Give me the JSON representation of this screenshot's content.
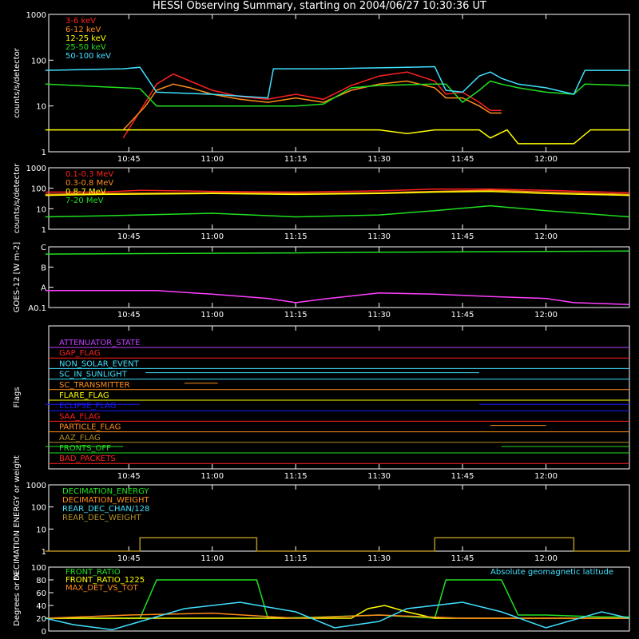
{
  "title": "HESSI Observing Summary, starting on 2004/06/27 10:30:36 UT",
  "time_ticks": [
    "10:45",
    "11:00",
    "11:15",
    "11:30",
    "11:45",
    "12:00"
  ],
  "colors": {
    "red": "#ff2020",
    "orange": "#ff8c1a",
    "yellow": "#ffff00",
    "green": "#20e020",
    "cyan": "#40e0ff",
    "magenta": "#ff40ff",
    "purple": "#c040ff",
    "blue": "#1a1aff",
    "olive": "#b09020",
    "white": "#ffffff"
  },
  "chart_data": [
    {
      "type": "line",
      "ylabel": "counts/s/detector",
      "yscale": "log",
      "ylim": [
        1,
        1000
      ],
      "yticks": [
        "1",
        "10",
        "100",
        "1000"
      ],
      "x_range": [
        "10:30:36",
        "12:15"
      ],
      "series": [
        {
          "name": "3-6 keV",
          "color": "#ff2020",
          "x": [
            "10:44",
            "10:48",
            "10:50",
            "10:53",
            "10:56",
            "11:00",
            "11:05",
            "11:10",
            "11:15",
            "11:20",
            "11:25",
            "11:30",
            "11:35",
            "11:40",
            "11:42",
            "11:45",
            "11:48",
            "11:50",
            "11:52"
          ],
          "y": [
            2,
            12,
            30,
            50,
            35,
            22,
            16,
            14,
            18,
            14,
            28,
            45,
            55,
            35,
            18,
            20,
            12,
            8,
            8
          ]
        },
        {
          "name": "6-12 keV",
          "color": "#ff8c1a",
          "x": [
            "10:44",
            "10:48",
            "10:50",
            "10:53",
            "10:56",
            "11:00",
            "11:05",
            "11:10",
            "11:15",
            "11:20",
            "11:25",
            "11:30",
            "11:35",
            "11:40",
            "11:42",
            "11:45",
            "11:48",
            "11:50",
            "11:52"
          ],
          "y": [
            3,
            10,
            22,
            30,
            25,
            18,
            14,
            12,
            15,
            12,
            22,
            30,
            35,
            25,
            15,
            15,
            10,
            7,
            7
          ]
        },
        {
          "name": "12-25 keV",
          "color": "#ffff00",
          "x": [
            "10:30",
            "10:44",
            "10:48",
            "10:58",
            "11:15",
            "11:30",
            "11:35",
            "11:40",
            "11:48",
            "11:50",
            "11:53",
            "11:55",
            "12:00",
            "12:05",
            "12:08",
            "12:15"
          ],
          "y": [
            3,
            3,
            3,
            3,
            3,
            3,
            2.5,
            3,
            3,
            2,
            3,
            1.5,
            1.5,
            1.5,
            3,
            3
          ]
        },
        {
          "name": "25-50 keV",
          "color": "#20e020",
          "x": [
            "10:30",
            "10:44",
            "10:47",
            "10:50",
            "11:00",
            "11:10",
            "11:15",
            "11:20",
            "11:25",
            "11:30",
            "11:40",
            "11:42",
            "11:45",
            "11:48",
            "11:50",
            "11:52",
            "11:55",
            "12:00",
            "12:05",
            "12:07",
            "12:15"
          ],
          "y": [
            30,
            25,
            24,
            10,
            10,
            10,
            10,
            11,
            25,
            28,
            30,
            30,
            12,
            22,
            35,
            30,
            25,
            20,
            18,
            30,
            28
          ]
        },
        {
          "name": "50-100 keV",
          "color": "#40e0ff",
          "x": [
            "10:30",
            "10:44",
            "10:47",
            "10:50",
            "11:00",
            "11:10",
            "11:11",
            "11:20",
            "11:30",
            "11:40",
            "11:42",
            "11:45",
            "11:48",
            "11:50",
            "11:52",
            "11:55",
            "12:00",
            "12:05",
            "12:07",
            "12:15"
          ],
          "y": [
            60,
            65,
            70,
            20,
            18,
            15,
            65,
            65,
            68,
            72,
            22,
            20,
            45,
            55,
            40,
            30,
            25,
            18,
            60,
            60
          ]
        }
      ]
    },
    {
      "type": "line",
      "ylabel": "counts/s/detector",
      "yscale": "log",
      "ylim": [
        1,
        1000
      ],
      "yticks": [
        "1",
        "10",
        "100",
        "1000"
      ],
      "series": [
        {
          "name": "0.1-0.3 MeV",
          "color": "#ff2020",
          "x": [
            "10:30",
            "10:40",
            "10:47",
            "11:00",
            "11:15",
            "11:30",
            "11:40",
            "11:50",
            "12:00",
            "12:15"
          ],
          "y": [
            65,
            65,
            80,
            70,
            65,
            75,
            90,
            90,
            80,
            60
          ]
        },
        {
          "name": "0.3-0.8 MeV",
          "color": "#ff8c1a",
          "x": [
            "10:30",
            "10:40",
            "11:00",
            "11:15",
            "11:30",
            "11:40",
            "11:50",
            "12:00",
            "12:15"
          ],
          "y": [
            50,
            55,
            60,
            55,
            60,
            70,
            80,
            65,
            50
          ]
        },
        {
          "name": "0.8-7 MeV",
          "color": "#ffff00",
          "x": [
            "10:30",
            "10:40",
            "11:00",
            "11:15",
            "11:30",
            "11:40",
            "11:50",
            "12:00",
            "12:15"
          ],
          "y": [
            45,
            50,
            55,
            50,
            55,
            65,
            70,
            55,
            45
          ]
        },
        {
          "name": "7-20 MeV",
          "color": "#20e020",
          "x": [
            "10:30",
            "10:40",
            "11:00",
            "11:15",
            "11:30",
            "11:40",
            "11:50",
            "12:00",
            "12:15"
          ],
          "y": [
            4,
            4.5,
            6,
            4,
            5,
            8,
            14,
            8,
            4
          ]
        }
      ]
    },
    {
      "type": "line",
      "ylabel": "GOES-12 [W m-2]",
      "yticks": [
        "A0.1",
        "A",
        "B",
        "C"
      ],
      "series": [
        {
          "name": "",
          "color": "#20e020",
          "x": [
            "10:30",
            "11:15",
            "11:30",
            "12:15"
          ],
          "y": [
            0.88,
            0.9,
            0.91,
            0.93
          ]
        },
        {
          "name": "",
          "color": "#ff40ff",
          "x": [
            "10:30",
            "10:50",
            "11:00",
            "11:10",
            "11:15",
            "11:20",
            "11:30",
            "11:40",
            "11:50",
            "12:00",
            "12:05",
            "12:15"
          ],
          "y": [
            0.28,
            0.28,
            0.22,
            0.15,
            0.08,
            0.14,
            0.24,
            0.22,
            0.18,
            0.15,
            0.08,
            0.05
          ]
        }
      ]
    },
    {
      "type": "line",
      "ylabel": "Flags",
      "flags": [
        {
          "name": "ATTENUATOR_STATE",
          "color": "#c040ff",
          "segments": []
        },
        {
          "name": "GAP_FLAG",
          "color": "#ff2020",
          "segments": []
        },
        {
          "name": "NON_SOLAR_EVENT",
          "color": "#40e0ff",
          "segments": []
        },
        {
          "name": "SC_IN_SUNLIGHT",
          "color": "#40e0ff",
          "segments": [
            [
              "10:48",
              "11:48"
            ]
          ]
        },
        {
          "name": "SC_TRANSMITTER",
          "color": "#ff8c1a",
          "segments": [
            [
              "10:55",
              "10:56"
            ],
            [
              "10:56",
              "11:01"
            ]
          ]
        },
        {
          "name": "FLARE_FLAG",
          "color": "#ffff00",
          "segments": []
        },
        {
          "name": "ECLIPSE_FLAG",
          "color": "#1a1aff",
          "segments": [
            [
              "10:30",
              "10:47"
            ],
            [
              "11:48",
              "12:15"
            ]
          ]
        },
        {
          "name": "SAA_FLAG",
          "color": "#ff2020",
          "segments": []
        },
        {
          "name": "PARTICLE_FLAG",
          "color": "#ff8c1a",
          "segments": [
            [
              "11:50",
              "12:00"
            ]
          ]
        },
        {
          "name": "AAZ_FLAG",
          "color": "#b09020",
          "segments": []
        },
        {
          "name": "FRONTS_OFF",
          "color": "#20e020",
          "segments": [
            [
              "10:30",
              "10:44"
            ],
            [
              "11:52",
              "12:15"
            ]
          ]
        },
        {
          "name": "BAD_PACKETS",
          "color": "#ff2020",
          "segments": []
        }
      ]
    },
    {
      "type": "line",
      "ylabel": "DECIMATION ENERGY or weight",
      "yscale": "log",
      "ylim": [
        1,
        1000
      ],
      "yticks": [
        "1",
        "10",
        "100",
        "1000"
      ],
      "series": [
        {
          "name": "DECIMATION_ENERGY",
          "color": "#20e020",
          "x": [],
          "y": []
        },
        {
          "name": "DECIMATION_WEIGHT",
          "color": "#ff8c1a",
          "x": [],
          "y": []
        },
        {
          "name": "REAR_DEC_CHAN/128",
          "color": "#40e0ff",
          "x": [],
          "y": []
        },
        {
          "name": "REAR_DEC_WEIGHT",
          "color": "#b09020",
          "x": [
            "10:30",
            "10:47",
            "10:47",
            "11:08",
            "11:08",
            "11:40",
            "11:40",
            "12:05",
            "12:05",
            "12:15"
          ],
          "y": [
            1,
            1,
            4,
            4,
            1,
            1,
            4,
            4,
            1,
            1
          ]
        }
      ]
    },
    {
      "type": "line",
      "ylabel": "Degrees or %",
      "ylim": [
        0,
        100
      ],
      "yticks": [
        "0",
        "20",
        "40",
        "60",
        "80",
        "100"
      ],
      "annotation": "Absolute geomagnetic latitude",
      "series": [
        {
          "name": "FRONT_RATIO",
          "color": "#20e020",
          "x": [
            "10:30",
            "10:45",
            "10:47",
            "10:50",
            "11:00",
            "11:08",
            "11:10",
            "11:20",
            "11:30",
            "11:40",
            "11:42",
            "11:48",
            "11:52",
            "11:55",
            "12:00",
            "12:10",
            "12:15"
          ],
          "y": [
            20,
            20,
            20,
            80,
            80,
            80,
            20,
            22,
            25,
            20,
            80,
            80,
            80,
            25,
            25,
            22,
            22
          ]
        },
        {
          "name": "FRONT_RATIO_1225",
          "color": "#ffff00",
          "x": [
            "10:30",
            "11:25",
            "11:28",
            "11:31",
            "11:35",
            "11:40",
            "12:15"
          ],
          "y": [
            20,
            20,
            35,
            40,
            30,
            20,
            20
          ]
        },
        {
          "name": "MAX_DET_VS_TOT",
          "color": "#ff8c1a",
          "x": [
            "10:30",
            "10:45",
            "11:00",
            "11:15",
            "11:30",
            "11:45",
            "12:00",
            "12:15"
          ],
          "y": [
            20,
            25,
            28,
            20,
            25,
            20,
            20,
            20
          ]
        },
        {
          "name": "Absolute geomagnetic latitude",
          "color": "#40e0ff",
          "x": [
            "10:30",
            "10:35",
            "10:42",
            "10:55",
            "11:05",
            "11:15",
            "11:22",
            "11:30",
            "11:35",
            "11:45",
            "11:52",
            "12:00",
            "12:10",
            "12:15"
          ],
          "y": [
            20,
            10,
            2,
            35,
            45,
            30,
            5,
            15,
            35,
            45,
            30,
            5,
            30,
            20
          ]
        }
      ]
    }
  ]
}
